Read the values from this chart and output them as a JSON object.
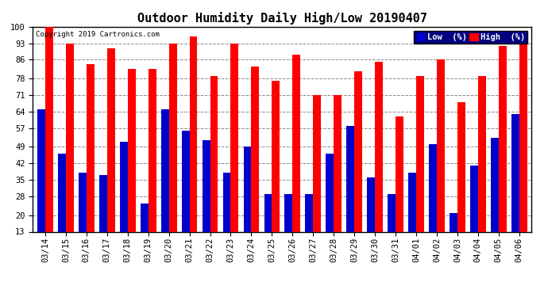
{
  "title": "Outdoor Humidity Daily High/Low 20190407",
  "copyright": "Copyright 2019 Cartronics.com",
  "legend_low": "Low  (%)",
  "legend_high": "High  (%)",
  "dates": [
    "03/14",
    "03/15",
    "03/16",
    "03/17",
    "03/18",
    "03/19",
    "03/20",
    "03/21",
    "03/22",
    "03/23",
    "03/24",
    "03/25",
    "03/26",
    "03/27",
    "03/28",
    "03/29",
    "03/30",
    "03/31",
    "04/01",
    "04/02",
    "04/03",
    "04/04",
    "04/05",
    "04/06"
  ],
  "high": [
    100,
    93,
    84,
    91,
    82,
    82,
    93,
    96,
    79,
    93,
    83,
    77,
    88,
    71,
    71,
    81,
    85,
    62,
    79,
    86,
    68,
    79,
    92,
    95
  ],
  "low": [
    65,
    46,
    38,
    37,
    51,
    25,
    65,
    56,
    52,
    38,
    49,
    29,
    29,
    29,
    46,
    58,
    36,
    29,
    38,
    50,
    21,
    41,
    53,
    63
  ],
  "ymin": 13,
  "ymax": 100,
  "yticks": [
    13,
    20,
    28,
    35,
    42,
    49,
    57,
    64,
    71,
    78,
    86,
    93,
    100
  ],
  "bar_width": 0.38,
  "high_color": "#ff0000",
  "low_color": "#0000cc",
  "bg_color": "#ffffff",
  "grid_color": "#888888",
  "title_fontsize": 11,
  "tick_fontsize": 7.5,
  "legend_bg": "#000080"
}
